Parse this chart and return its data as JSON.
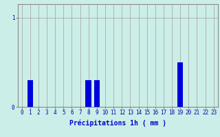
{
  "values": [
    0,
    0.3,
    0,
    0,
    0,
    0,
    0,
    0,
    0.3,
    0.3,
    0,
    0,
    0,
    0,
    0,
    0,
    0,
    0,
    0,
    0.5,
    0,
    0,
    0,
    0
  ],
  "bar_color": "#0000dd",
  "background_color": "#cceee8",
  "grid_color": "#aaaaaa",
  "tick_color": "#0000aa",
  "xlabel": "Précipitations 1h ( mm )",
  "xlabel_color": "#0000cc",
  "ylim": [
    0,
    1.15
  ],
  "yticks": [
    0,
    1
  ],
  "ytick_labels": [
    "0",
    "1"
  ],
  "xlim": [
    -0.5,
    23.5
  ],
  "xlabel_fontsize": 7,
  "tick_fontsize": 5.5,
  "bar_width": 0.7
}
